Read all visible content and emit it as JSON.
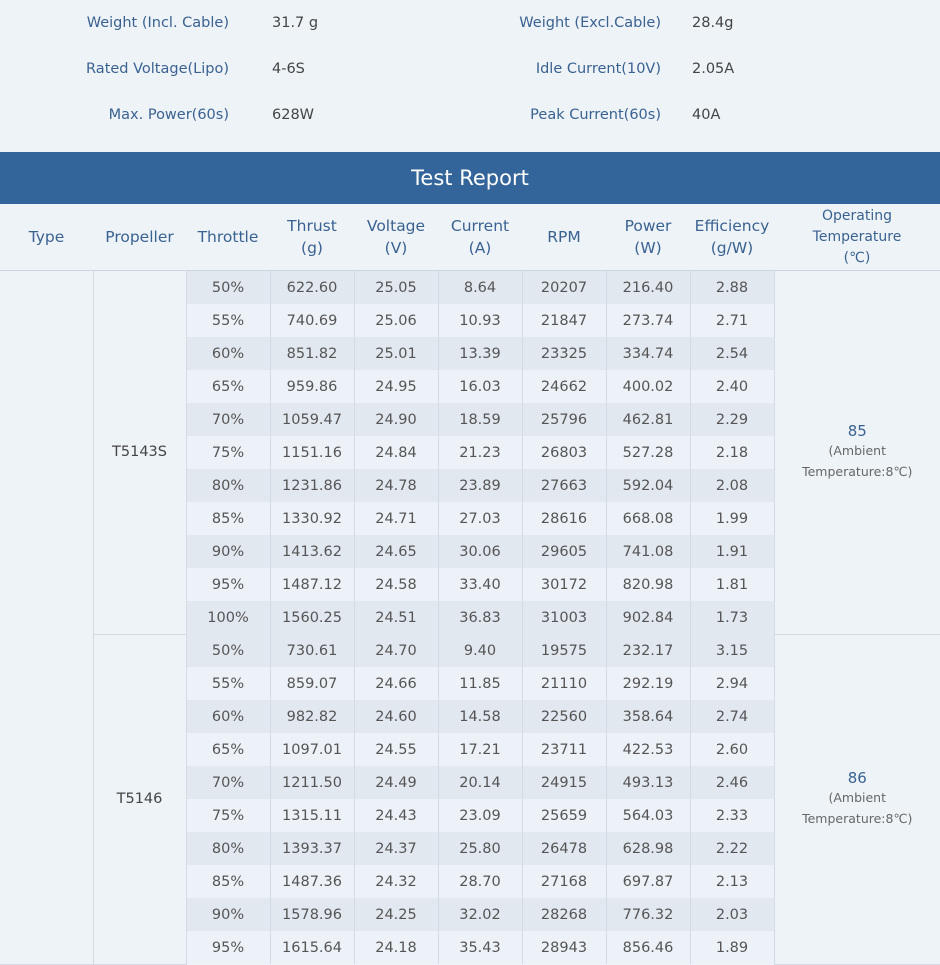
{
  "specs": [
    {
      "label": "Weight (Incl. Cable)",
      "value": "31.7 g",
      "label2": "Weight (Excl.Cable)",
      "value2": "28.4g"
    },
    {
      "label": "Rated Voltage(Lipo)",
      "value": "4-6S",
      "label2": "Idle Current(10V)",
      "value2": "2.05A"
    },
    {
      "label": "Max. Power(60s)",
      "value": "628W",
      "label2": "Peak Current(60s)",
      "value2": "40A"
    }
  ],
  "banner": "Test Report",
  "headers": {
    "type": "Type",
    "propeller": "Propeller",
    "throttle": "Throttle",
    "thrust": "Thrust",
    "thrust_unit": "(g)",
    "voltage": "Voltage",
    "voltage_unit": "(V)",
    "current": "Current",
    "current_unit": "(A)",
    "rpm": "RPM",
    "power": "Power",
    "power_unit": "(W)",
    "efficiency": "Efficiency",
    "efficiency_unit": "(g/W)",
    "temp1": "Operating",
    "temp2": "Temperature",
    "temp3": "(℃)"
  },
  "groups": [
    {
      "propeller": "T5143S",
      "temp": "85",
      "ambient1": "(Ambient",
      "ambient2": "Temperature:8℃)",
      "rows": [
        [
          "50%",
          "622.60",
          "25.05",
          "8.64",
          "20207",
          "216.40",
          "2.88"
        ],
        [
          "55%",
          "740.69",
          "25.06",
          "10.93",
          "21847",
          "273.74",
          "2.71"
        ],
        [
          "60%",
          "851.82",
          "25.01",
          "13.39",
          "23325",
          "334.74",
          "2.54"
        ],
        [
          "65%",
          "959.86",
          "24.95",
          "16.03",
          "24662",
          "400.02",
          "2.40"
        ],
        [
          "70%",
          "1059.47",
          "24.90",
          "18.59",
          "25796",
          "462.81",
          "2.29"
        ],
        [
          "75%",
          "1151.16",
          "24.84",
          "21.23",
          "26803",
          "527.28",
          "2.18"
        ],
        [
          "80%",
          "1231.86",
          "24.78",
          "23.89",
          "27663",
          "592.04",
          "2.08"
        ],
        [
          "85%",
          "1330.92",
          "24.71",
          "27.03",
          "28616",
          "668.08",
          "1.99"
        ],
        [
          "90%",
          "1413.62",
          "24.65",
          "30.06",
          "29605",
          "741.08",
          "1.91"
        ],
        [
          "95%",
          "1487.12",
          "24.58",
          "33.40",
          "30172",
          "820.98",
          "1.81"
        ],
        [
          "100%",
          "1560.25",
          "24.51",
          "36.83",
          "31003",
          "902.84",
          "1.73"
        ]
      ]
    },
    {
      "propeller": "T5146",
      "temp": "86",
      "ambient1": "(Ambient",
      "ambient2": "Temperature:8℃)",
      "rows": [
        [
          "50%",
          "730.61",
          "24.70",
          "9.40",
          "19575",
          "232.17",
          "3.15"
        ],
        [
          "55%",
          "859.07",
          "24.66",
          "11.85",
          "21110",
          "292.19",
          "2.94"
        ],
        [
          "60%",
          "982.82",
          "24.60",
          "14.58",
          "22560",
          "358.64",
          "2.74"
        ],
        [
          "65%",
          "1097.01",
          "24.55",
          "17.21",
          "23711",
          "422.53",
          "2.60"
        ],
        [
          "70%",
          "1211.50",
          "24.49",
          "20.14",
          "24915",
          "493.13",
          "2.46"
        ],
        [
          "75%",
          "1315.11",
          "24.43",
          "23.09",
          "25659",
          "564.03",
          "2.33"
        ],
        [
          "80%",
          "1393.37",
          "24.37",
          "25.80",
          "26478",
          "628.98",
          "2.22"
        ],
        [
          "85%",
          "1487.36",
          "24.32",
          "28.70",
          "27168",
          "697.87",
          "2.13"
        ],
        [
          "90%",
          "1578.96",
          "24.25",
          "32.02",
          "28268",
          "776.32",
          "2.03"
        ],
        [
          "95%",
          "1615.64",
          "24.18",
          "35.43",
          "28943",
          "856.46",
          "1.89"
        ]
      ]
    }
  ]
}
